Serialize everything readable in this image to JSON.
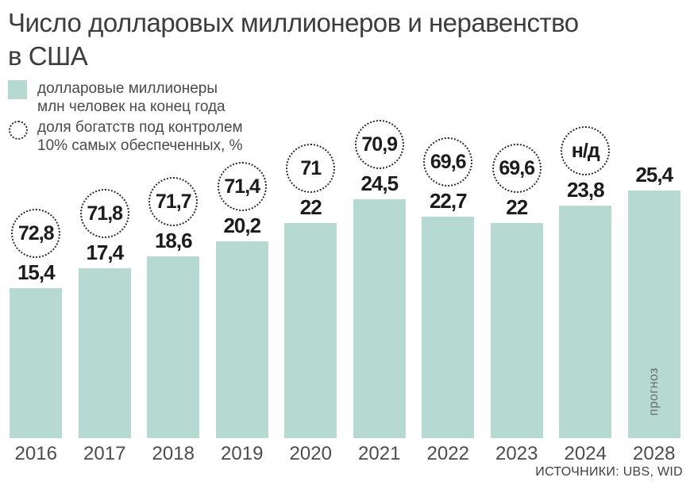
{
  "title": {
    "line1": "Число долларовых миллионеров и неравенство",
    "line2": "в США"
  },
  "legend": {
    "millionaires": {
      "line1": "долларовые миллионеры",
      "line2": "млн человек на конец года"
    },
    "inequality": {
      "line1": "доля богатств под контролем",
      "line2": "10% самых обеспеченных, %"
    }
  },
  "forecast_label": "прогноз",
  "source": "ИСТОЧНИКИ: UBS, WID",
  "colors": {
    "bar_fill": "#b6d9d1",
    "circle_border": "#2b2b2b",
    "value_text": "#1c1c1c",
    "year_text": "#4d4d4d",
    "title_text": "#3d3d3d",
    "forecast_text": "#66706d"
  },
  "chart_data": {
    "type": "bar",
    "title": "Число долларовых миллионеров и неравенство в США",
    "categories": [
      "2016",
      "2017",
      "2018",
      "2019",
      "2020",
      "2021",
      "2022",
      "2023",
      "2024",
      "2028"
    ],
    "series": [
      {
        "name": "долларовые миллионеры, млн человек на конец года",
        "values": [
          15.4,
          17.4,
          18.6,
          20.2,
          22,
          24.5,
          22.7,
          22,
          23.8,
          25.4
        ],
        "value_labels": [
          "15,4",
          "17,4",
          "18,6",
          "20,2",
          "22",
          "24,5",
          "22,7",
          "22",
          "23,8",
          "25,4"
        ]
      },
      {
        "name": "доля богатств под контролем 10% самых обеспеченных, %",
        "values": [
          72.8,
          71.8,
          71.7,
          71.4,
          71,
          70.9,
          69.6,
          69.6,
          null,
          null
        ],
        "value_labels": [
          "72,8",
          "71,8",
          "71,7",
          "71,4",
          "71",
          "70,9",
          "69,6",
          "69,6",
          "н/д",
          null
        ]
      }
    ],
    "forecast_category": "2028",
    "sources": [
      "UBS",
      "WID"
    ],
    "legend_position": "top-left",
    "grid": false
  }
}
